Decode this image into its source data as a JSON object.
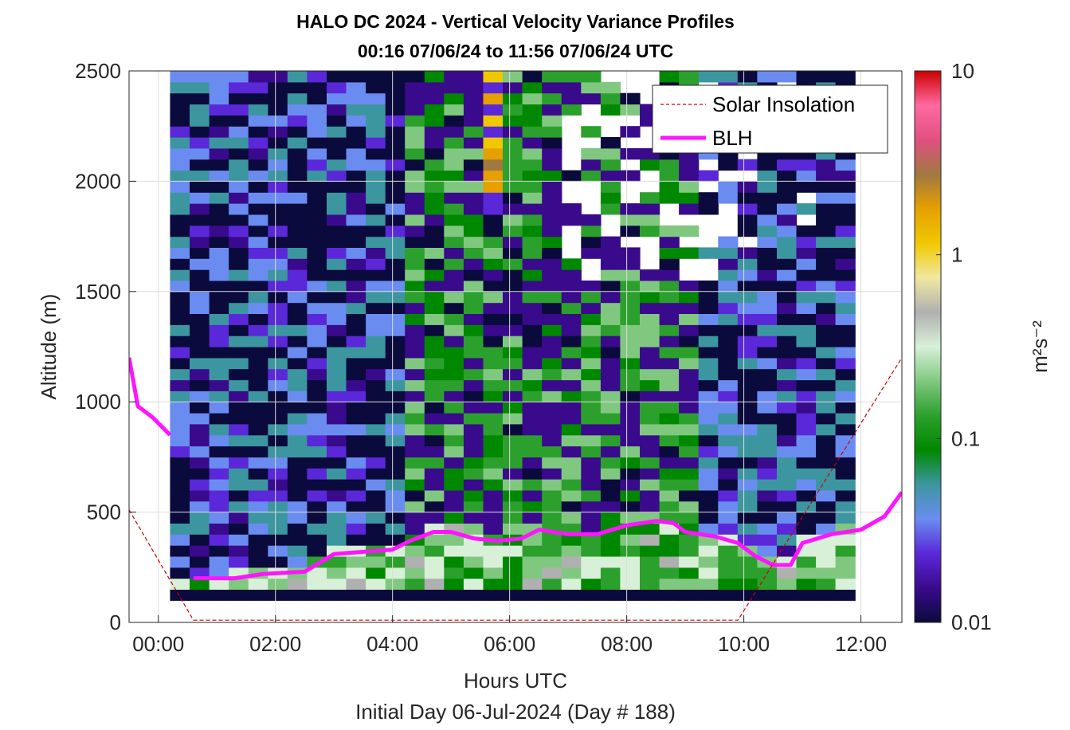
{
  "chart_data": {
    "type": "heatmap",
    "title_line1": "HALO DC 2024 - Vertical Velocity Variance Profiles",
    "title_line2": "00:16 07/06/24 to 11:56 07/06/24  UTC",
    "xlabel": "Hours UTC",
    "xlabel_secondary": "Initial Day 06-Jul-2024 (Day # 188)",
    "ylabel": "Altitude (m)",
    "colorbar_label": "m²s⁻²",
    "x_range_hours": [
      -0.5,
      12.7
    ],
    "y_range_m": [
      0,
      2500
    ],
    "x_ticks": [
      {
        "value": 0,
        "label": "00:00"
      },
      {
        "value": 2,
        "label": "02:00"
      },
      {
        "value": 4,
        "label": "04:00"
      },
      {
        "value": 6,
        "label": "06:00"
      },
      {
        "value": 8,
        "label": "08:00"
      },
      {
        "value": 10,
        "label": "10:00"
      },
      {
        "value": 12,
        "label": "12:00"
      }
    ],
    "y_ticks": [
      0,
      500,
      1000,
      1500,
      2000,
      2500
    ],
    "colorbar": {
      "scale": "log",
      "range": [
        0.01,
        10
      ],
      "ticks": [
        {
          "value": 0.01,
          "label": "0.01"
        },
        {
          "value": 0.1,
          "label": "0.1"
        },
        {
          "value": 1,
          "label": "1"
        },
        {
          "value": 10,
          "label": "10"
        }
      ],
      "stops": [
        "#0a0a3c",
        "#3a0a8c",
        "#5a28d8",
        "#6a8cf0",
        "#3c96a0",
        "#008800",
        "#2ca02c",
        "#80c880",
        "#d8f0d8",
        "#b0b0b0",
        "#f0e8a0",
        "#f0c800",
        "#e6a000",
        "#a07840",
        "#e05080",
        "#ff6aa0",
        "#cc0000"
      ]
    },
    "grid": true,
    "legend": {
      "position": "top-right",
      "entries": [
        {
          "label": "Solar Insolation",
          "color": "#cc0000",
          "style": "dashed"
        },
        {
          "label": "BLH",
          "color": "#ff14ff",
          "style": "solid"
        }
      ]
    },
    "series": [
      {
        "name": "BLH",
        "color": "#ff14ff",
        "x": [
          -0.5,
          -0.35,
          -0.1,
          0.2
        ],
        "y": [
          1200,
          980,
          930,
          850
        ]
      },
      {
        "name": "BLH",
        "color": "#ff14ff",
        "x": [
          0.6,
          1.3,
          1.8,
          2.5,
          3.0,
          3.5,
          4.0,
          4.3,
          4.7,
          5.0,
          5.4,
          5.8,
          6.2,
          6.5,
          7.0,
          7.5,
          8.0,
          8.5,
          8.8,
          9.0,
          9.5,
          9.9,
          10.2,
          10.5,
          10.8,
          11.0,
          11.5,
          12.0,
          12.4,
          12.7
        ],
        "y": [
          200,
          200,
          220,
          230,
          310,
          320,
          330,
          370,
          410,
          410,
          380,
          370,
          380,
          420,
          400,
          400,
          440,
          460,
          450,
          410,
          390,
          360,
          300,
          260,
          260,
          360,
          400,
          420,
          480,
          590
        ]
      },
      {
        "name": "Solar Insolation",
        "color": "#cc0000",
        "x": [
          -0.5,
          0.6,
          9.9,
          12.7
        ],
        "y": [
          510,
          10,
          10,
          1200
        ]
      }
    ],
    "heatmap": {
      "x_start_hour": 0.2,
      "x_end_hour": 11.9,
      "y_start_m": 100,
      "bin_height_m": 50,
      "n_x_bins": 35,
      "n_y_bins": 49,
      "surface_band_m": [
        100,
        140
      ]
    }
  }
}
